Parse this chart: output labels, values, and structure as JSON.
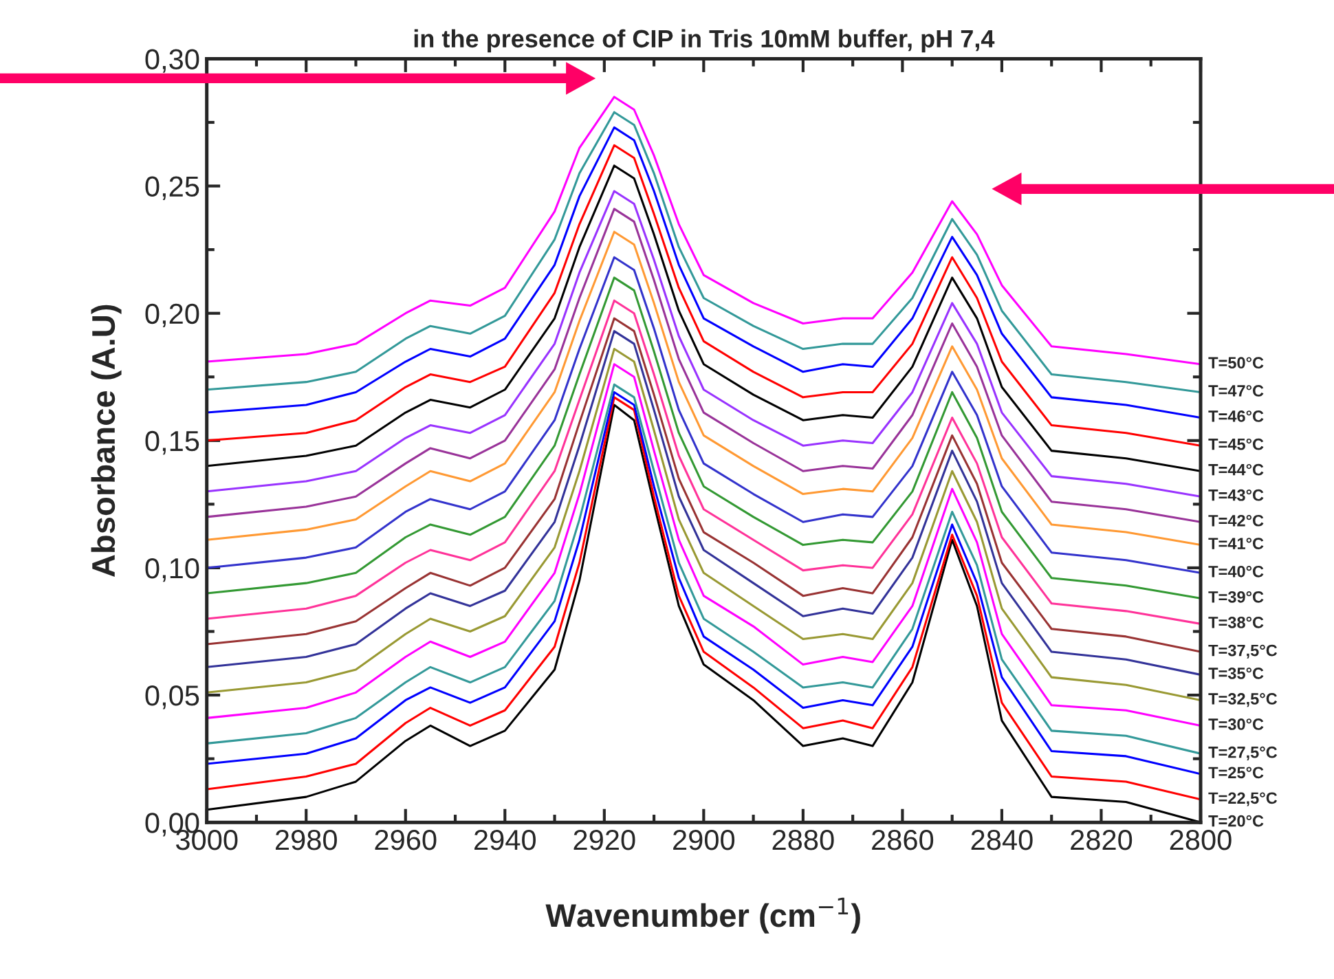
{
  "chart_data": {
    "type": "line",
    "title": "in the presence of CIP in Tris 10mM buffer, pH 7,4",
    "xlabel": "Wavenumber (cm$^{−1}$)",
    "ylabel": "Absorbance (A.U)",
    "x": [
      3000,
      2980,
      2970,
      2960,
      2955,
      2947,
      2940,
      2930,
      2925,
      2918,
      2914,
      2910,
      2905,
      2900,
      2890,
      2880,
      2872,
      2866,
      2858,
      2850,
      2845,
      2840,
      2830,
      2815,
      2800
    ],
    "xlim": [
      3000,
      2800
    ],
    "xticks": [
      3000,
      2980,
      2960,
      2940,
      2920,
      2900,
      2880,
      2860,
      2840,
      2820,
      2800
    ],
    "ylim": [
      0,
      0.3
    ],
    "yticks": [
      {
        "value": 0,
        "label": "0,00"
      },
      {
        "value": 0.05,
        "label": "0,05"
      },
      {
        "value": 0.1,
        "label": "0,10"
      },
      {
        "value": 0.15,
        "label": "0,15"
      },
      {
        "value": 0.2,
        "label": "0,20"
      },
      {
        "value": 0.25,
        "label": "0,25"
      },
      {
        "value": 0.3,
        "label": "0,30"
      }
    ],
    "grid": false,
    "legend": false,
    "marker": "none",
    "line_style": "solid",
    "series": [
      {
        "name": "T=20°C",
        "color": "#000000",
        "values": [
          0.005,
          0.01,
          0.016,
          0.032,
          0.038,
          0.03,
          0.036,
          0.06,
          0.095,
          0.164,
          0.158,
          0.125,
          0.085,
          0.062,
          0.048,
          0.03,
          0.033,
          0.03,
          0.055,
          0.111,
          0.085,
          0.04,
          0.01,
          0.008,
          0.0
        ]
      },
      {
        "name": "T=22,5°C",
        "color": "#ff0000",
        "values": [
          0.013,
          0.018,
          0.023,
          0.039,
          0.045,
          0.038,
          0.044,
          0.069,
          0.102,
          0.167,
          0.162,
          0.128,
          0.089,
          0.067,
          0.053,
          0.037,
          0.04,
          0.037,
          0.061,
          0.113,
          0.089,
          0.047,
          0.018,
          0.016,
          0.009
        ]
      },
      {
        "name": "T=25°C",
        "color": "#0000ff",
        "values": [
          0.023,
          0.027,
          0.033,
          0.048,
          0.053,
          0.047,
          0.053,
          0.079,
          0.111,
          0.169,
          0.164,
          0.132,
          0.096,
          0.073,
          0.06,
          0.045,
          0.048,
          0.046,
          0.069,
          0.117,
          0.094,
          0.057,
          0.028,
          0.026,
          0.019
        ]
      },
      {
        "name": "T=27,5°C",
        "color": "#339999",
        "values": [
          0.031,
          0.035,
          0.041,
          0.055,
          0.061,
          0.055,
          0.061,
          0.087,
          0.119,
          0.172,
          0.167,
          0.138,
          0.102,
          0.08,
          0.067,
          0.053,
          0.055,
          0.053,
          0.076,
          0.122,
          0.101,
          0.064,
          0.036,
          0.034,
          0.027
        ]
      },
      {
        "name": "T=30°C",
        "color": "#ff00ff",
        "values": [
          0.041,
          0.045,
          0.051,
          0.065,
          0.071,
          0.065,
          0.071,
          0.098,
          0.129,
          0.18,
          0.175,
          0.146,
          0.111,
          0.089,
          0.077,
          0.062,
          0.065,
          0.063,
          0.085,
          0.131,
          0.11,
          0.074,
          0.046,
          0.044,
          0.038
        ]
      },
      {
        "name": "T=32,5°C",
        "color": "#999933",
        "values": [
          0.051,
          0.055,
          0.06,
          0.074,
          0.08,
          0.075,
          0.081,
          0.108,
          0.138,
          0.186,
          0.181,
          0.154,
          0.119,
          0.098,
          0.085,
          0.072,
          0.074,
          0.072,
          0.094,
          0.138,
          0.118,
          0.084,
          0.057,
          0.054,
          0.048
        ]
      },
      {
        "name": "T=35°C",
        "color": "#333399",
        "values": [
          0.061,
          0.065,
          0.07,
          0.084,
          0.09,
          0.085,
          0.091,
          0.118,
          0.148,
          0.193,
          0.188,
          0.162,
          0.128,
          0.107,
          0.094,
          0.081,
          0.084,
          0.082,
          0.104,
          0.146,
          0.126,
          0.094,
          0.067,
          0.064,
          0.058
        ]
      },
      {
        "name": "T=37,5°C",
        "color": "#993333",
        "values": [
          0.07,
          0.074,
          0.079,
          0.092,
          0.098,
          0.093,
          0.1,
          0.127,
          0.157,
          0.198,
          0.193,
          0.168,
          0.135,
          0.114,
          0.102,
          0.089,
          0.092,
          0.09,
          0.112,
          0.152,
          0.133,
          0.102,
          0.076,
          0.073,
          0.067
        ]
      },
      {
        "name": "T=38°C",
        "color": "#ff3399",
        "values": [
          0.08,
          0.084,
          0.089,
          0.102,
          0.107,
          0.103,
          0.11,
          0.138,
          0.166,
          0.205,
          0.2,
          0.176,
          0.144,
          0.123,
          0.111,
          0.099,
          0.101,
          0.1,
          0.121,
          0.159,
          0.141,
          0.112,
          0.086,
          0.083,
          0.078
        ]
      },
      {
        "name": "T=39°C",
        "color": "#339933",
        "values": [
          0.09,
          0.094,
          0.098,
          0.112,
          0.117,
          0.113,
          0.12,
          0.148,
          0.176,
          0.214,
          0.209,
          0.185,
          0.153,
          0.132,
          0.12,
          0.109,
          0.111,
          0.11,
          0.13,
          0.169,
          0.151,
          0.122,
          0.096,
          0.093,
          0.088
        ]
      },
      {
        "name": "T=40°C",
        "color": "#3333cc",
        "values": [
          0.1,
          0.104,
          0.108,
          0.122,
          0.127,
          0.123,
          0.13,
          0.158,
          0.186,
          0.222,
          0.217,
          0.194,
          0.162,
          0.141,
          0.129,
          0.118,
          0.121,
          0.12,
          0.14,
          0.177,
          0.16,
          0.132,
          0.106,
          0.103,
          0.098
        ]
      },
      {
        "name": "T=41°C",
        "color": "#ff9933",
        "values": [
          0.111,
          0.115,
          0.119,
          0.132,
          0.138,
          0.134,
          0.141,
          0.169,
          0.197,
          0.232,
          0.227,
          0.204,
          0.173,
          0.152,
          0.14,
          0.129,
          0.131,
          0.13,
          0.151,
          0.187,
          0.17,
          0.143,
          0.117,
          0.114,
          0.109
        ]
      },
      {
        "name": "T=42°C",
        "color": "#993399",
        "values": [
          0.12,
          0.124,
          0.128,
          0.141,
          0.147,
          0.143,
          0.15,
          0.178,
          0.206,
          0.241,
          0.236,
          0.213,
          0.182,
          0.161,
          0.149,
          0.138,
          0.14,
          0.139,
          0.16,
          0.196,
          0.179,
          0.152,
          0.126,
          0.123,
          0.118
        ]
      },
      {
        "name": "T=43°C",
        "color": "#9933ff",
        "values": [
          0.13,
          0.134,
          0.138,
          0.151,
          0.156,
          0.153,
          0.16,
          0.188,
          0.216,
          0.248,
          0.243,
          0.221,
          0.191,
          0.17,
          0.158,
          0.148,
          0.15,
          0.149,
          0.169,
          0.204,
          0.188,
          0.161,
          0.136,
          0.133,
          0.128
        ]
      },
      {
        "name": "T=44°C",
        "color": "#000000",
        "values": [
          0.14,
          0.144,
          0.148,
          0.161,
          0.166,
          0.163,
          0.17,
          0.198,
          0.226,
          0.258,
          0.253,
          0.231,
          0.201,
          0.18,
          0.168,
          0.158,
          0.16,
          0.159,
          0.179,
          0.214,
          0.198,
          0.171,
          0.146,
          0.143,
          0.138
        ]
      },
      {
        "name": "T=45°C",
        "color": "#ff0000",
        "values": [
          0.15,
          0.153,
          0.158,
          0.171,
          0.176,
          0.173,
          0.179,
          0.208,
          0.235,
          0.266,
          0.261,
          0.239,
          0.21,
          0.189,
          0.177,
          0.167,
          0.169,
          0.169,
          0.188,
          0.222,
          0.206,
          0.181,
          0.156,
          0.153,
          0.148
        ]
      },
      {
        "name": "T=46°C",
        "color": "#0000ff",
        "values": [
          0.161,
          0.164,
          0.169,
          0.181,
          0.186,
          0.183,
          0.19,
          0.219,
          0.246,
          0.273,
          0.268,
          0.248,
          0.219,
          0.198,
          0.187,
          0.177,
          0.18,
          0.179,
          0.198,
          0.23,
          0.215,
          0.192,
          0.167,
          0.164,
          0.159
        ]
      },
      {
        "name": "T=47°C",
        "color": "#339999",
        "values": [
          0.17,
          0.173,
          0.177,
          0.19,
          0.195,
          0.192,
          0.199,
          0.229,
          0.255,
          0.279,
          0.274,
          0.255,
          0.226,
          0.206,
          0.195,
          0.186,
          0.188,
          0.188,
          0.206,
          0.237,
          0.223,
          0.201,
          0.176,
          0.173,
          0.169
        ]
      },
      {
        "name": "T=50°C",
        "color": "#ff00ff",
        "values": [
          0.181,
          0.184,
          0.188,
          0.2,
          0.205,
          0.203,
          0.21,
          0.24,
          0.265,
          0.285,
          0.28,
          0.262,
          0.235,
          0.215,
          0.204,
          0.196,
          0.198,
          0.198,
          0.216,
          0.244,
          0.231,
          0.211,
          0.187,
          0.184,
          0.18
        ]
      }
    ]
  }
}
